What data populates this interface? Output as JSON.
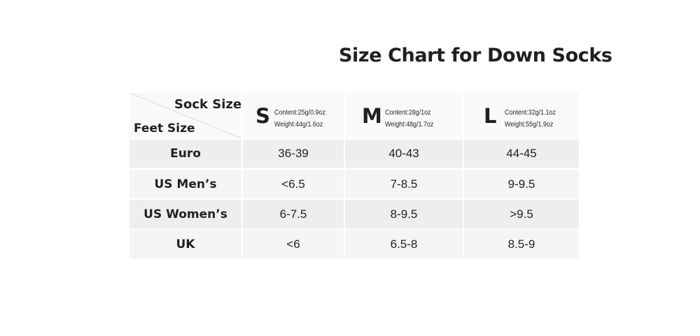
{
  "title": "Size Chart for Down Socks",
  "table": {
    "corner": {
      "column_header": "Sock Size",
      "row_header": "Feet Size"
    },
    "sizes": [
      {
        "letter": "S",
        "content": "Content:25g/0.9oz",
        "weight": "Weight:44g/1.6oz"
      },
      {
        "letter": "M",
        "content": "Content:28g/1oz",
        "weight": "Weight:48g/1.7oz"
      },
      {
        "letter": "L",
        "content": "Content:32g/1.1oz",
        "weight": "Weight:55g/1.9oz"
      }
    ],
    "rows": [
      {
        "label": "Euro",
        "values": [
          "36-39",
          "40-43",
          "44-45"
        ]
      },
      {
        "label": "US Men’s",
        "values": [
          "<6.5",
          "7-8.5",
          "9-9.5"
        ]
      },
      {
        "label": "US Women’s",
        "values": [
          "6-7.5",
          "8-9.5",
          ">9.5"
        ]
      },
      {
        "label": "UK",
        "values": [
          "<6",
          "6.5-8",
          "8.5-9"
        ]
      }
    ]
  }
}
